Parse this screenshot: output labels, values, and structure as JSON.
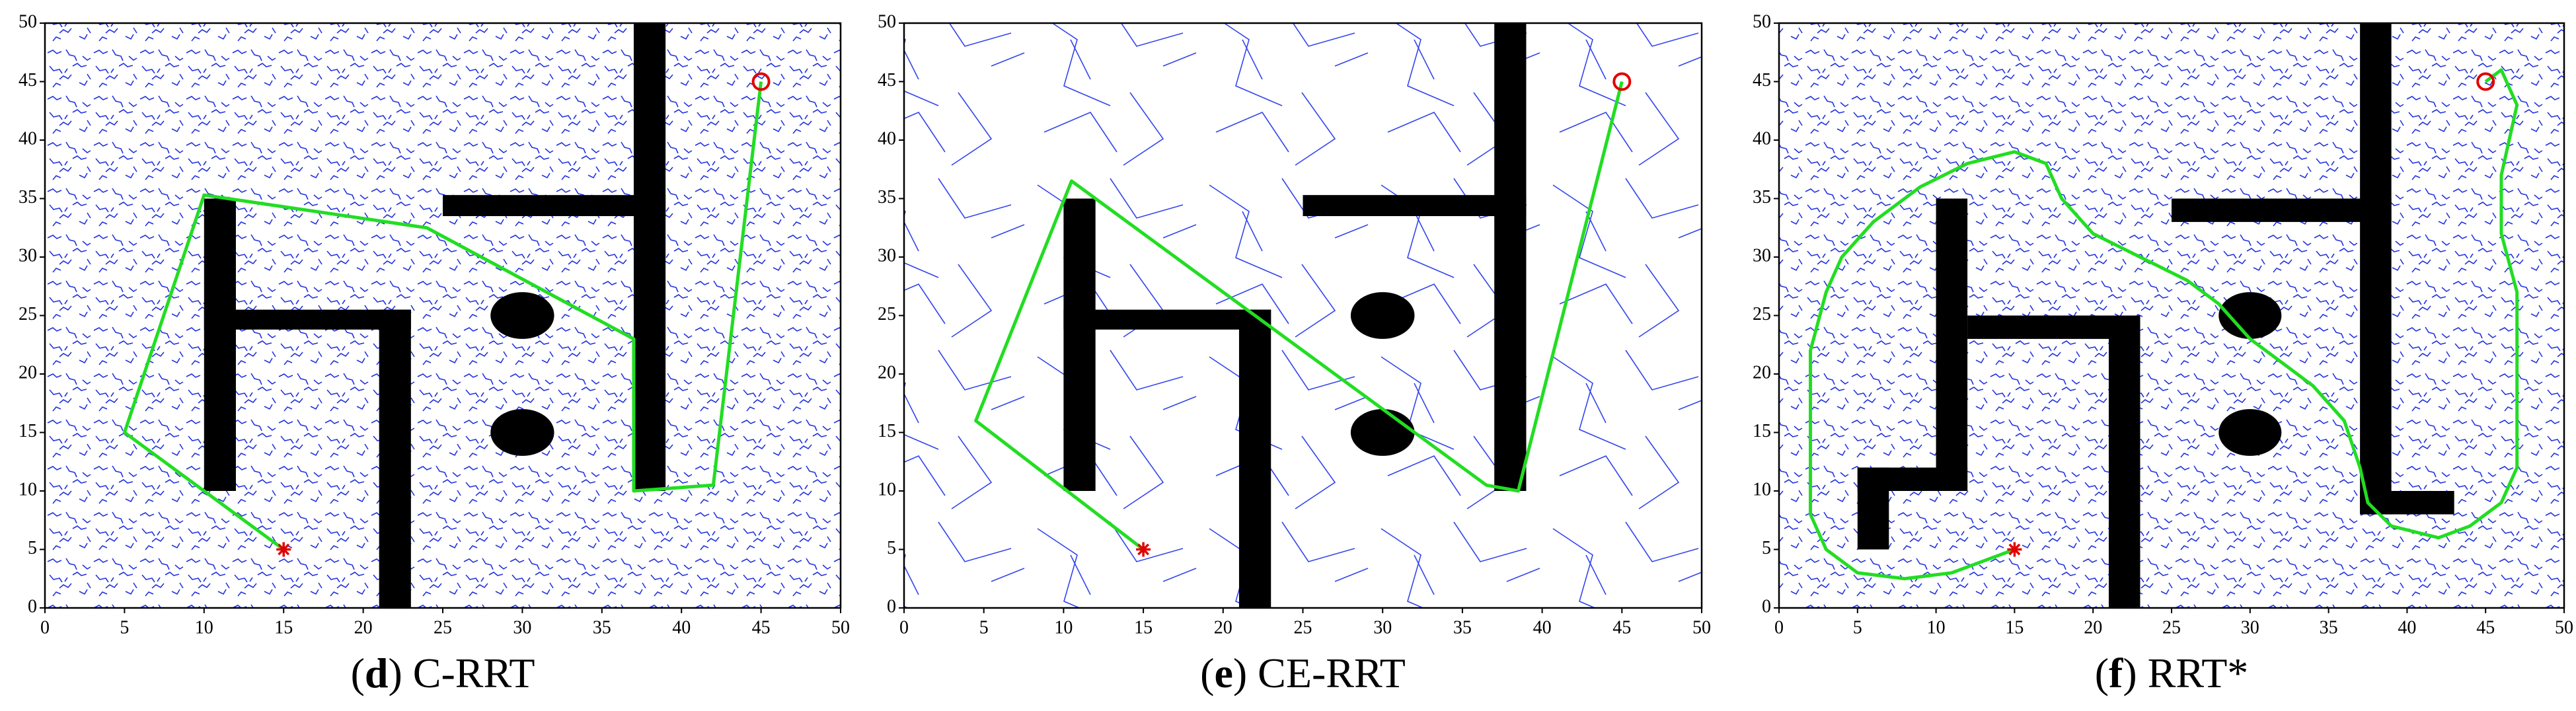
{
  "chart_data": [
    {
      "type": "line",
      "caption": [
        "(",
        "d",
        ") C-RRT"
      ],
      "xlim": [
        0,
        50
      ],
      "ylim": [
        0,
        50
      ],
      "xticks": [
        0,
        5,
        10,
        15,
        20,
        25,
        30,
        35,
        40,
        45,
        50
      ],
      "yticks": [
        0,
        5,
        10,
        15,
        20,
        25,
        30,
        35,
        40,
        45,
        50
      ],
      "obstacles": [
        {
          "shape": "rect",
          "x": [
            37,
            39
          ],
          "y": [
            10,
            50
          ]
        },
        {
          "shape": "rect",
          "x": [
            25,
            39
          ],
          "y": [
            33.5,
            35.3
          ]
        },
        {
          "shape": "rect",
          "x": [
            10,
            12
          ],
          "y": [
            10,
            35
          ]
        },
        {
          "shape": "rect",
          "x": [
            10,
            23
          ],
          "y": [
            23.8,
            25.5
          ]
        },
        {
          "shape": "rect",
          "x": [
            21,
            23
          ],
          "y": [
            0,
            25.5
          ]
        },
        {
          "shape": "ellipse",
          "x": [
            28,
            32
          ],
          "y": [
            23,
            27
          ]
        },
        {
          "shape": "ellipse",
          "x": [
            28,
            32
          ],
          "y": [
            13,
            17
          ]
        }
      ],
      "series": [
        {
          "color": "#22dd22",
          "x": [
            15,
            10,
            5,
            10,
            24,
            37,
            37,
            42,
            45
          ],
          "values": [
            5,
            10,
            15,
            35.3,
            32.5,
            23,
            10,
            10.5,
            45
          ]
        },
        {
          "color": "#e00000",
          "marker": "star",
          "x": [
            15
          ],
          "values": [
            5
          ]
        },
        {
          "color": "#e00000",
          "marker": "circle",
          "x": [
            45
          ],
          "values": [
            45
          ]
        }
      ]
    },
    {
      "type": "line",
      "caption": [
        "(",
        "e",
        ") CE-RRT"
      ],
      "xlim": [
        0,
        50
      ],
      "ylim": [
        0,
        50
      ],
      "xticks": [
        0,
        5,
        10,
        15,
        20,
        25,
        30,
        35,
        40,
        45,
        50
      ],
      "yticks": [
        0,
        5,
        10,
        15,
        20,
        25,
        30,
        35,
        40,
        45,
        50
      ],
      "obstacles": [
        {
          "shape": "rect",
          "x": [
            37,
            39
          ],
          "y": [
            10,
            50
          ]
        },
        {
          "shape": "rect",
          "x": [
            25,
            39
          ],
          "y": [
            33.5,
            35.3
          ]
        },
        {
          "shape": "rect",
          "x": [
            10,
            12
          ],
          "y": [
            10,
            35
          ]
        },
        {
          "shape": "rect",
          "x": [
            10,
            23
          ],
          "y": [
            23.8,
            25.5
          ]
        },
        {
          "shape": "rect",
          "x": [
            21,
            23
          ],
          "y": [
            0,
            25.5
          ]
        },
        {
          "shape": "ellipse",
          "x": [
            28,
            32
          ],
          "y": [
            23,
            27
          ]
        },
        {
          "shape": "ellipse",
          "x": [
            28,
            32
          ],
          "y": [
            13,
            17
          ]
        }
      ],
      "series": [
        {
          "color": "#22dd22",
          "x": [
            15,
            4.5,
            10.5,
            36.5,
            38.5,
            45
          ],
          "values": [
            5,
            16,
            36.5,
            10.5,
            10,
            45
          ]
        },
        {
          "color": "#e00000",
          "marker": "star",
          "x": [
            15
          ],
          "values": [
            5
          ]
        },
        {
          "color": "#e00000",
          "marker": "circle",
          "x": [
            45
          ],
          "values": [
            45
          ]
        }
      ]
    },
    {
      "type": "line",
      "caption": [
        "(",
        "f",
        ") RRT*"
      ],
      "xlim": [
        0,
        50
      ],
      "ylim": [
        0,
        50
      ],
      "xticks": [
        0,
        5,
        10,
        15,
        20,
        25,
        30,
        35,
        40,
        45,
        50
      ],
      "yticks": [
        0,
        5,
        10,
        15,
        20,
        25,
        30,
        35,
        40,
        45,
        50
      ],
      "obstacles": [
        {
          "shape": "rect",
          "x": [
            37,
            39
          ],
          "y": [
            8,
            50
          ]
        },
        {
          "shape": "rect",
          "x": [
            25,
            39
          ],
          "y": [
            33,
            35
          ]
        },
        {
          "shape": "rect",
          "x": [
            37,
            43
          ],
          "y": [
            8,
            10
          ]
        },
        {
          "shape": "rect",
          "x": [
            10,
            12
          ],
          "y": [
            10,
            35
          ]
        },
        {
          "shape": "rect",
          "x": [
            5,
            12
          ],
          "y": [
            10,
            12
          ]
        },
        {
          "shape": "rect",
          "x": [
            5,
            7
          ],
          "y": [
            5,
            12
          ]
        },
        {
          "shape": "rect",
          "x": [
            12,
            23
          ],
          "y": [
            23,
            25
          ]
        },
        {
          "shape": "rect",
          "x": [
            21,
            23
          ],
          "y": [
            0,
            25
          ]
        },
        {
          "shape": "ellipse",
          "x": [
            28,
            32
          ],
          "y": [
            23,
            27
          ]
        },
        {
          "shape": "ellipse",
          "x": [
            28,
            32
          ],
          "y": [
            13,
            17
          ]
        }
      ],
      "series": [
        {
          "color": "#22dd22",
          "x": [
            15,
            13,
            11,
            8,
            5,
            3,
            2,
            2,
            2,
            2,
            3,
            4,
            6,
            9,
            12,
            15,
            17,
            18,
            20,
            23,
            26,
            28,
            30,
            32,
            34,
            36,
            37,
            37.5,
            39,
            42,
            44,
            46,
            47,
            47,
            47,
            47,
            46,
            46,
            47,
            46,
            45
          ],
          "values": [
            5,
            4,
            3,
            2.5,
            3,
            5,
            8,
            12,
            17,
            22,
            27,
            30,
            33,
            36,
            38,
            39,
            38,
            35,
            32,
            30,
            28,
            26,
            23,
            21,
            19,
            16,
            12,
            9,
            7,
            6,
            7,
            9,
            12,
            17,
            22,
            27,
            32,
            37,
            43,
            46,
            45
          ]
        },
        {
          "color": "#e00000",
          "marker": "star",
          "x": [
            15
          ],
          "values": [
            5
          ]
        },
        {
          "color": "#e00000",
          "marker": "circle",
          "x": [
            45
          ],
          "values": [
            45
          ]
        }
      ]
    }
  ]
}
